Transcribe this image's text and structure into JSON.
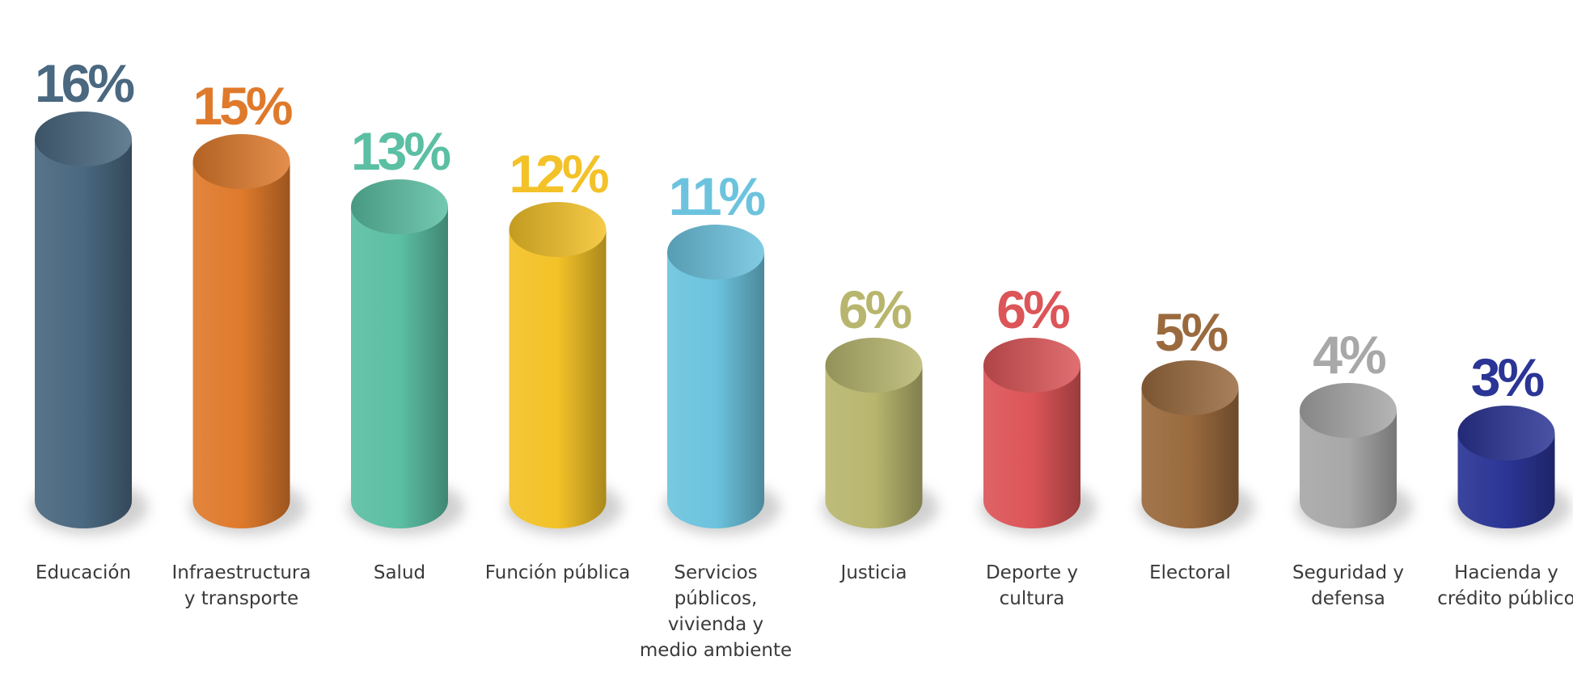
{
  "chart_data": {
    "type": "cylinder",
    "categories": [
      "Educación",
      "Infraestructura y transporte",
      "Salud",
      "Función pública",
      "Servicios públicos, vivienda y medio ambiente",
      "Justicia",
      "Deporte y cultura",
      "Electoral",
      "Seguridad y defensa",
      "Hacienda y crédito público"
    ],
    "values": [
      16,
      15,
      13,
      12,
      11,
      6,
      6,
      5,
      4,
      3
    ],
    "value_labels": [
      "16%",
      "15%",
      "13%",
      "12%",
      "11%",
      "6%",
      "6%",
      "5%",
      "4%",
      "3%"
    ],
    "colors": [
      "#4a6880",
      "#df7a2c",
      "#5bbfa3",
      "#f3c228",
      "#6cc3de",
      "#b8b66e",
      "#dc5558",
      "#9a6a3e",
      "#a8a8a8",
      "#2b3595"
    ]
  }
}
